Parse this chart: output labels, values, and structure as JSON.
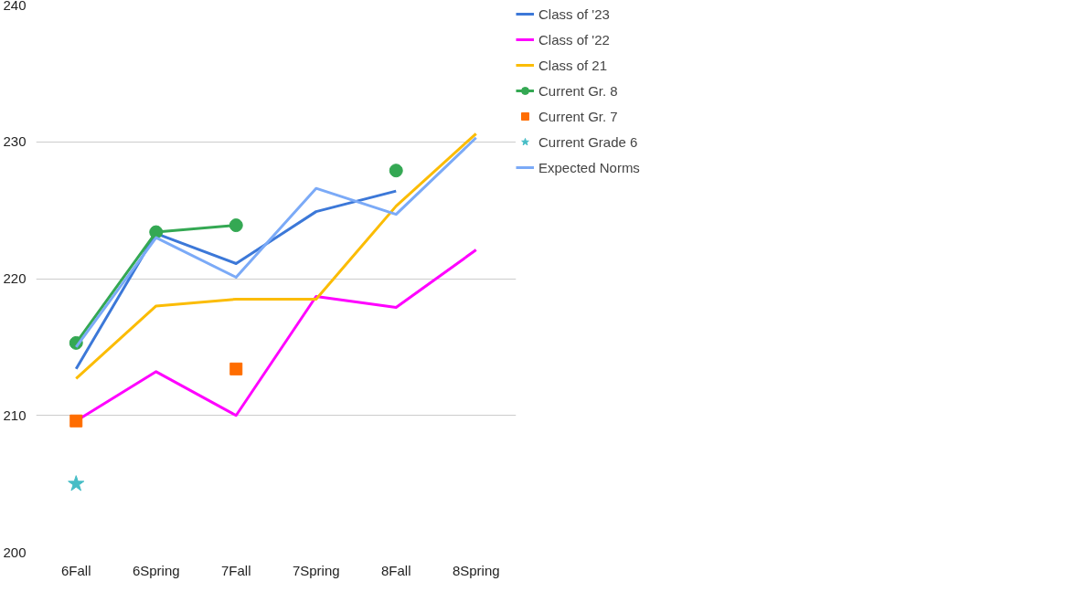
{
  "chart_data": {
    "type": "line",
    "categories": [
      "6Fall",
      "6Spring",
      "7Fall",
      "7Spring",
      "8Fall",
      "8Spring"
    ],
    "ylim": [
      200,
      240
    ],
    "yticks": [
      200,
      210,
      220,
      230,
      240
    ],
    "grid": "y",
    "legend": "top right",
    "line_style": "solid",
    "series": [
      {
        "name": "Class of '23",
        "color": "#3c78d8",
        "values": [
          213.4,
          223.3,
          221.1,
          224.9,
          226.4,
          null
        ]
      },
      {
        "name": "Class of '22",
        "color": "#ff00ff",
        "values": [
          209.6,
          213.2,
          210.0,
          218.7,
          217.9,
          222.1
        ]
      },
      {
        "name": "Class of 21",
        "color": "#fbbc04",
        "values": [
          212.7,
          218.0,
          218.5,
          218.5,
          225.3,
          230.6
        ]
      },
      {
        "name": "Current Gr. 8",
        "color": "#34a853",
        "marker": "circle",
        "values": [
          215.3,
          223.4,
          223.9,
          null,
          227.9,
          null
        ]
      },
      {
        "name": "Current Gr. 7",
        "color": "#ff6d01",
        "type": "scatter",
        "marker": "square",
        "values": [
          209.6,
          null,
          213.4,
          null,
          null,
          null
        ]
      },
      {
        "name": "Current Grade 6",
        "color": "#46bdc6",
        "type": "scatter",
        "marker": "star",
        "values": [
          205.0,
          null,
          null,
          null,
          null,
          null
        ]
      },
      {
        "name": "Expected Norms",
        "color": "#7baaf7",
        "values": [
          215.0,
          223.0,
          220.1,
          226.6,
          224.7,
          230.3
        ]
      }
    ]
  }
}
